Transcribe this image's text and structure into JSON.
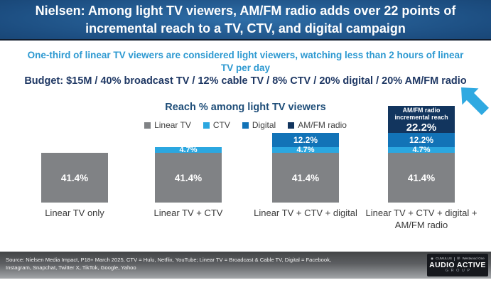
{
  "header": {
    "title": "Nielsen: Among light TV viewers, AM/FM radio adds over 22 points of incremental reach to a TV, CTV, and digital campaign"
  },
  "subtitle": "One-third of linear TV viewers are considered light viewers, watching less than 2 hours of linear TV per day",
  "budget_line": "Budget: $15M / 40% broadcast TV / 12% cable TV / 8% CTV / 20% digital / 20% AM/FM radio",
  "chart_data": {
    "type": "bar",
    "stacked": true,
    "title": "Reach % among light TV viewers",
    "value_suffix": "%",
    "annotation": "AM/FM radio incremental reach",
    "legend_position": "top",
    "grid": false,
    "categories": [
      "Linear TV only",
      "Linear TV + CTV",
      "Linear TV + CTV + digital",
      "Linear TV + CTV + digital + AM/FM radio"
    ],
    "series": [
      {
        "name": "Linear TV",
        "color": "#808285",
        "values": [
          41.4,
          41.4,
          41.4,
          41.4
        ]
      },
      {
        "name": "CTV",
        "color": "#2BA7E0",
        "values": [
          null,
          4.7,
          4.7,
          4.7
        ]
      },
      {
        "name": "Digital",
        "color": "#1273B7",
        "values": [
          null,
          null,
          12.2,
          12.2
        ]
      },
      {
        "name": "AM/FM radio",
        "color": "#12355E",
        "values": [
          null,
          null,
          null,
          22.2
        ]
      }
    ]
  },
  "icons": {
    "arrow": "arrow-down-left",
    "arrow_color": "#2FA9E1"
  },
  "footer": {
    "source": "Source: Nielsen Media Impact, P18+ March 2025, CTV = Hulu, Netflix, YouTube; Linear TV = Broadcast & Cable TV, Digital = Facebook, Instagram, Snapchat, Twitter X, TikTok, Google, Yahoo",
    "logo": {
      "brand_left": "CUMULUS",
      "brand_right": "Westwood One",
      "main": "AUDIO ACTIVE",
      "sub": "GROUP"
    }
  }
}
